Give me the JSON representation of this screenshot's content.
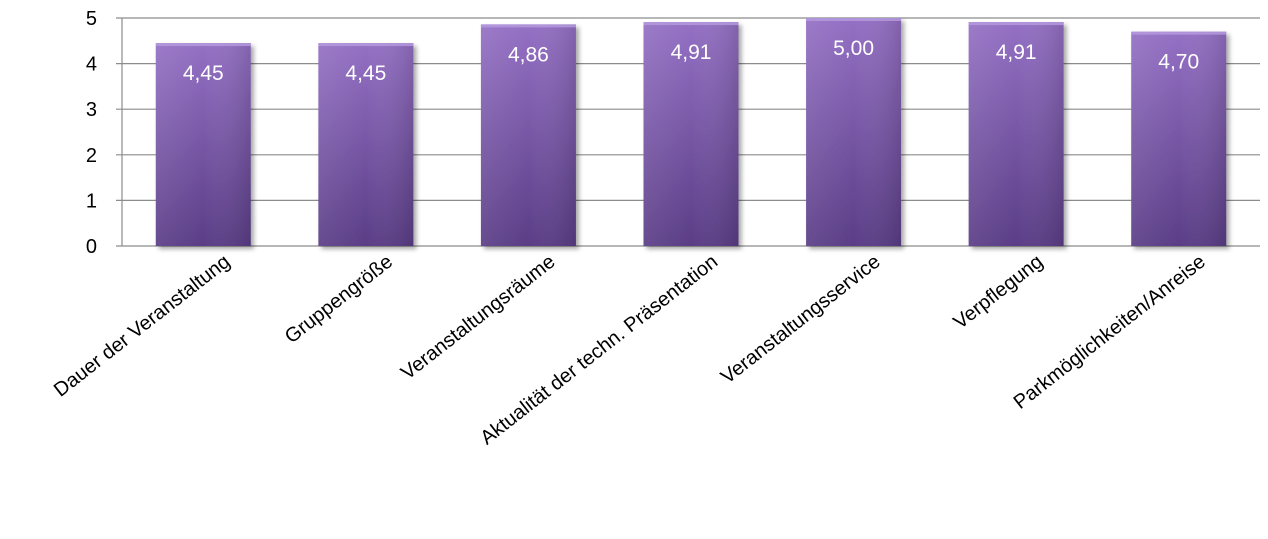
{
  "chart_data": {
    "type": "bar",
    "categories": [
      "Dauer der Veranstaltung",
      "Gruppengröße",
      "Veranstaltungsräume",
      "Aktualität der techn. Präsentation",
      "Veranstaltungsservice",
      "Verpflegung",
      "Parkmöglichkeiten/Anreise"
    ],
    "values": [
      4.45,
      4.45,
      4.86,
      4.91,
      5.0,
      4.91,
      4.7
    ],
    "data_labels": [
      "4,45",
      "4,45",
      "4,86",
      "4,91",
      "5,00",
      "4,91",
      "4,70"
    ],
    "y_ticks": [
      "0",
      "1",
      "2",
      "3",
      "4",
      "5"
    ],
    "ylim": [
      0,
      5
    ],
    "title": "",
    "xlabel": "",
    "ylabel": "",
    "grid": true,
    "legend": "none",
    "bar_color": "#7b56a8"
  }
}
